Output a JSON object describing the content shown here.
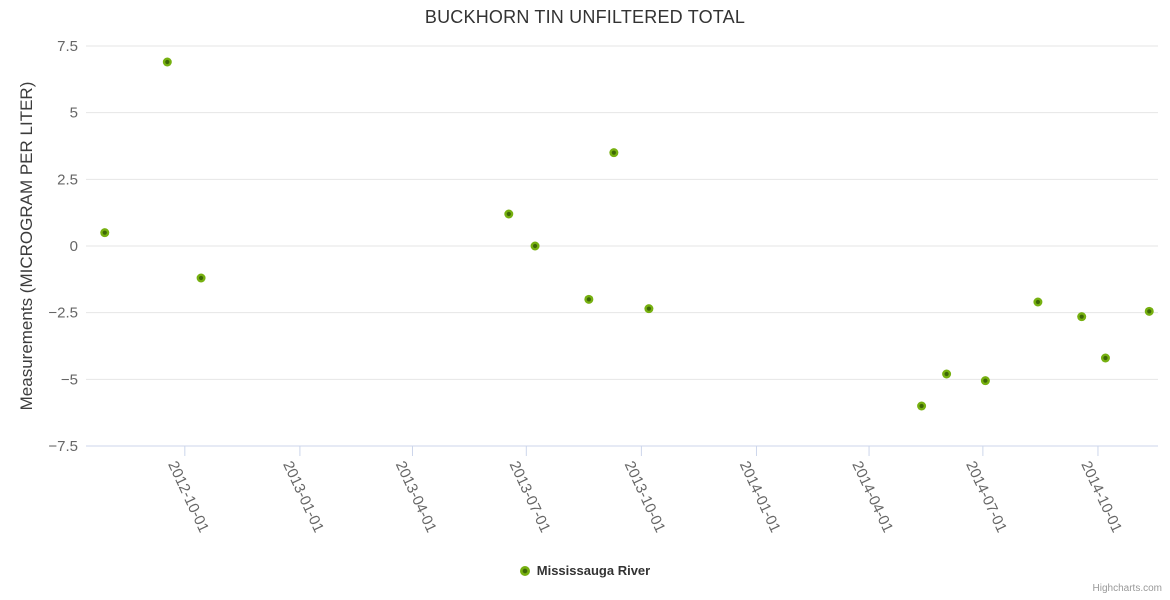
{
  "chart": {
    "credits": "Highcharts.com"
  },
  "colors": {
    "title": "#333333",
    "axis_label": "#666666",
    "grid_line": "#e6e6e6",
    "axis_line": "#ccd6eb",
    "point_fill": "#76b010",
    "point_core": "#3e6806",
    "legend_text": "#333333",
    "credits_text": "#999999"
  },
  "chart_data": {
    "type": "scatter",
    "title": "BUCKHORN TIN UNFILTERED TOTAL",
    "xlabel": "",
    "ylabel": "Measurements (MICROGRAM PER LITER)",
    "ylim": [
      -7.5,
      7.5
    ],
    "y_ticks": [
      7.5,
      5,
      2.5,
      0,
      -2.5,
      -5,
      -7.5
    ],
    "x_ticks": [
      "2012-10-01",
      "2013-01-01",
      "2013-04-01",
      "2013-07-01",
      "2013-10-01",
      "2014-01-01",
      "2014-04-01",
      "2014-07-01",
      "2014-10-01"
    ],
    "x_range": [
      "2012-07-14",
      "2014-11-18"
    ],
    "grid": true,
    "legend_position": "bottom-center",
    "series": [
      {
        "name": "Mississauga River",
        "color": "#76b010",
        "points": [
          {
            "x": "2012-07-29",
            "y": 0.5
          },
          {
            "x": "2012-09-17",
            "y": 6.9
          },
          {
            "x": "2012-10-14",
            "y": -1.2
          },
          {
            "x": "2013-06-17",
            "y": 1.2
          },
          {
            "x": "2013-07-08",
            "y": 0.0
          },
          {
            "x": "2013-08-20",
            "y": -2.0
          },
          {
            "x": "2013-09-09",
            "y": 3.5
          },
          {
            "x": "2013-10-07",
            "y": -2.35
          },
          {
            "x": "2014-05-13",
            "y": -6.0
          },
          {
            "x": "2014-06-02",
            "y": -4.8
          },
          {
            "x": "2014-07-03",
            "y": -5.05
          },
          {
            "x": "2014-08-14",
            "y": -2.1
          },
          {
            "x": "2014-09-18",
            "y": -2.65
          },
          {
            "x": "2014-10-07",
            "y": -4.2
          },
          {
            "x": "2014-11-11",
            "y": -2.45
          }
        ]
      }
    ]
  }
}
